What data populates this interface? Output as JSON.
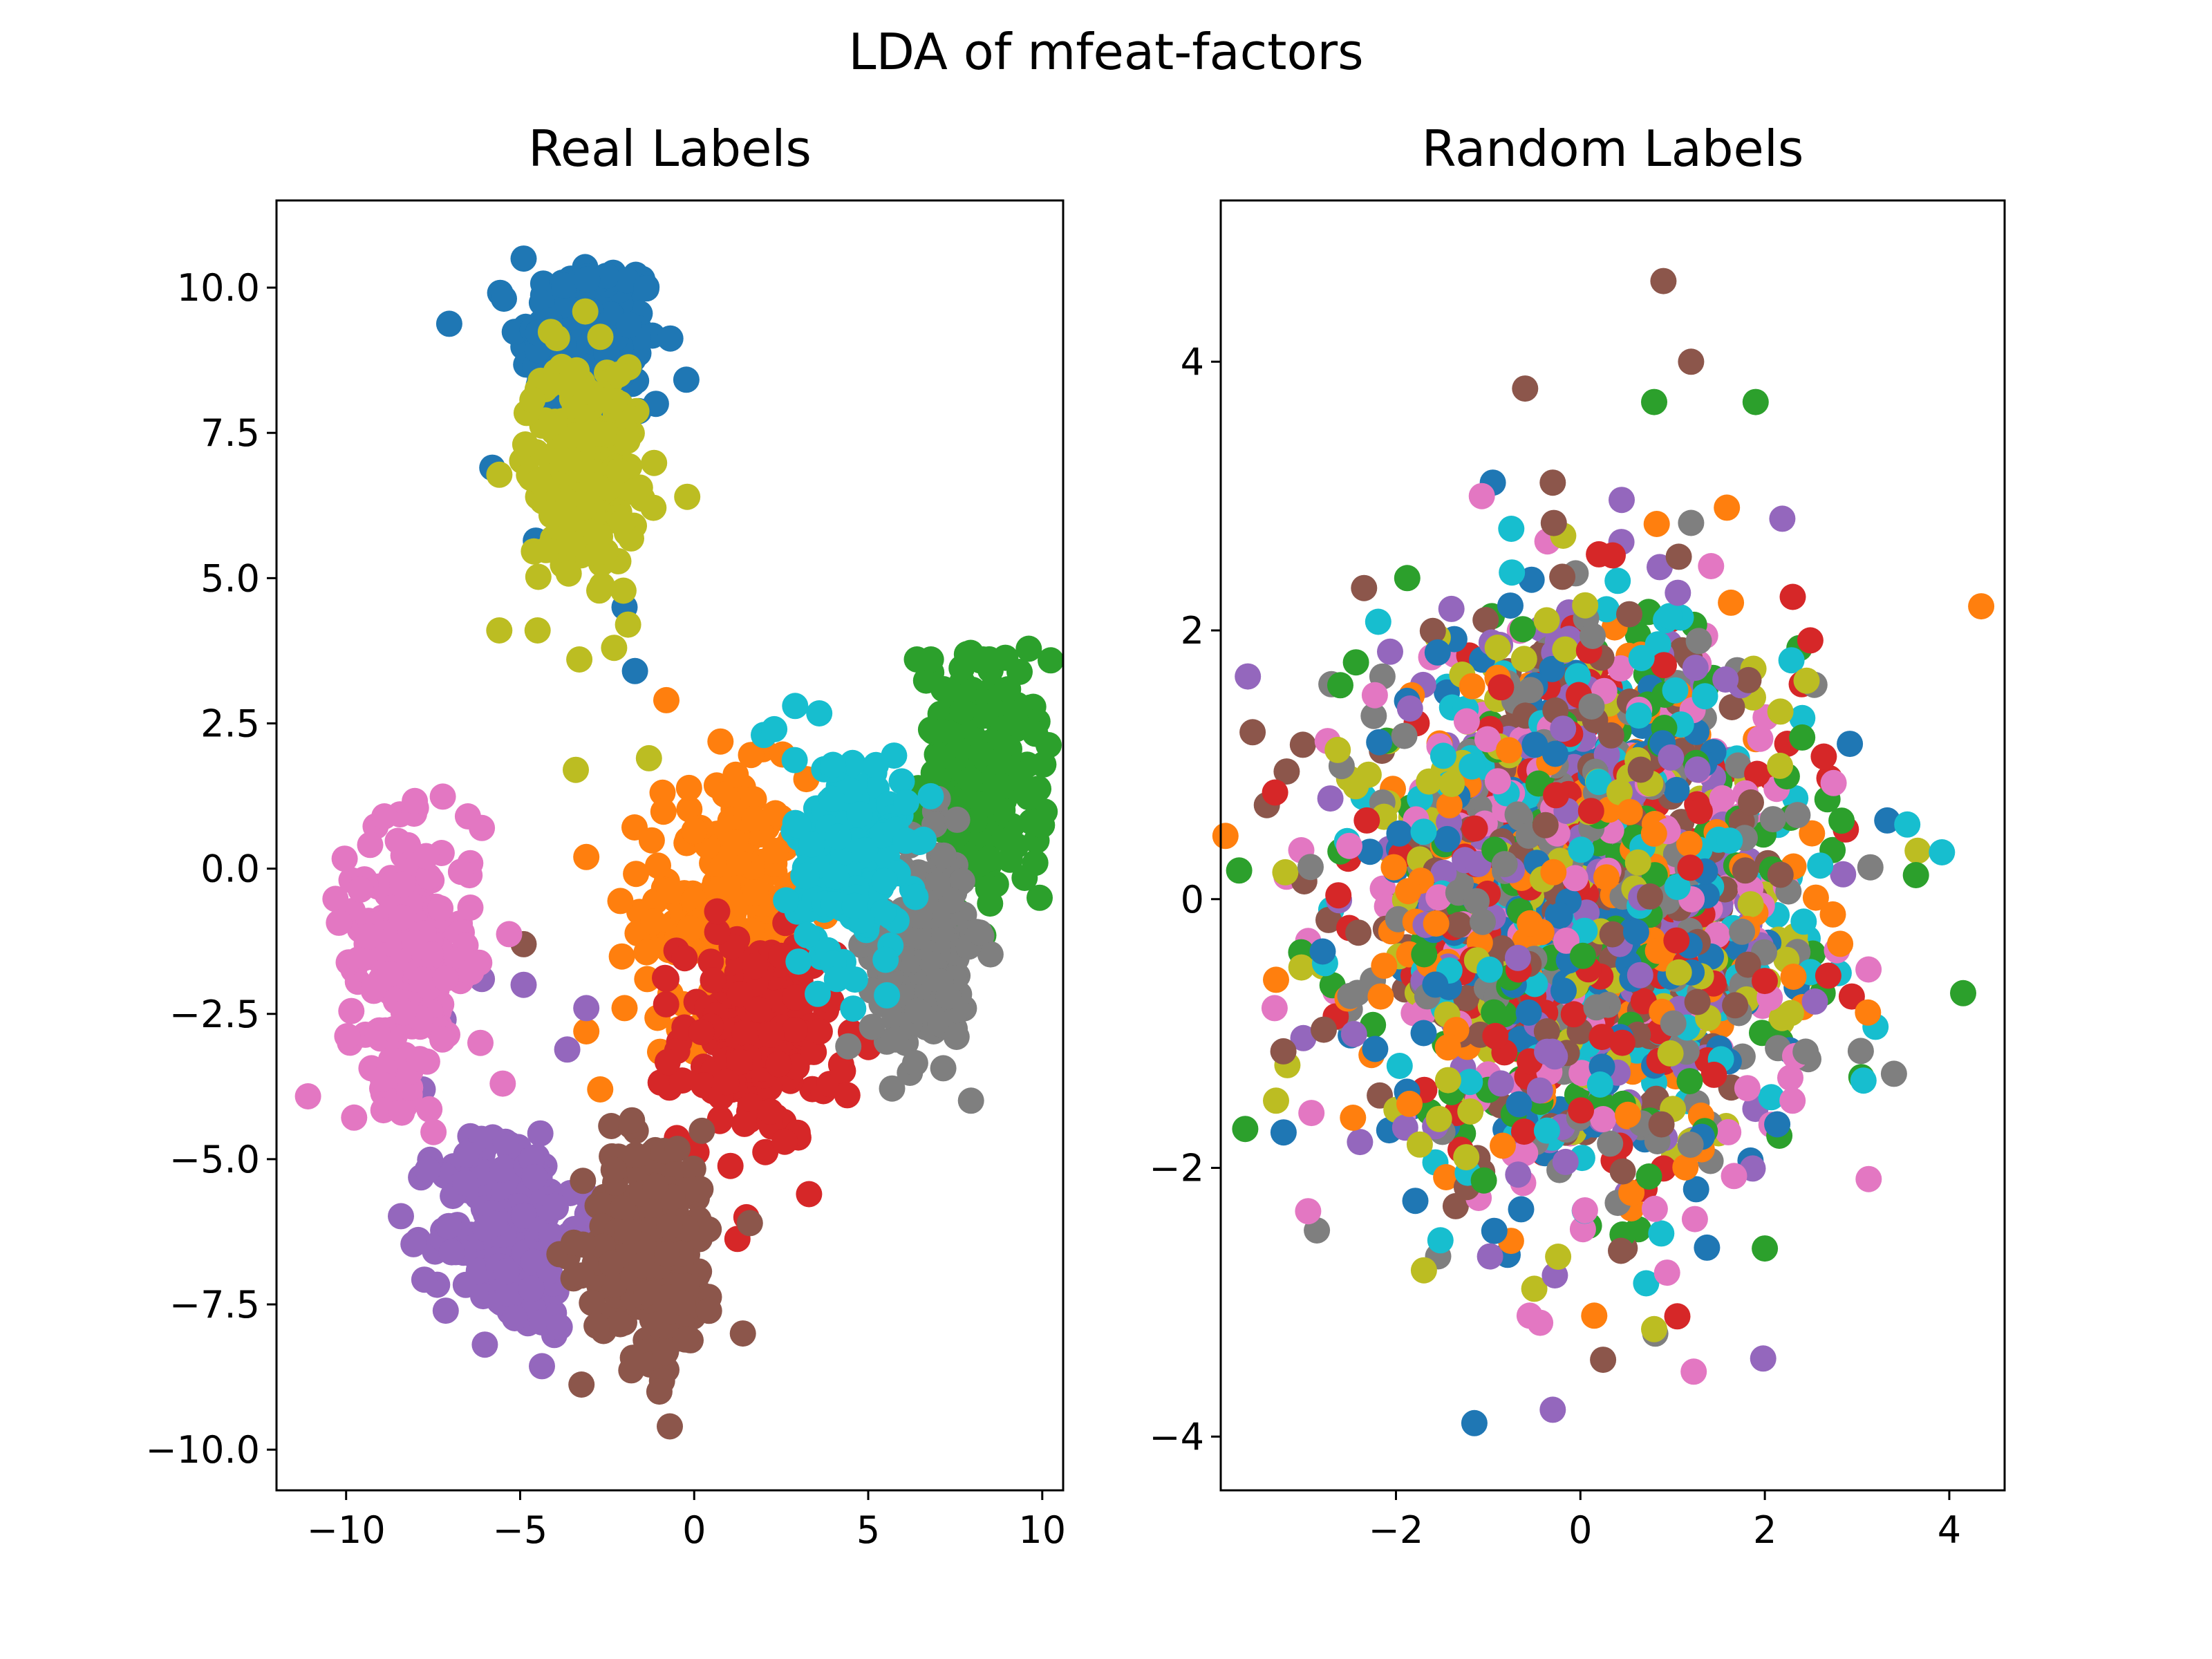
{
  "figure_title": "LDA of mfeat-factors",
  "palette": [
    "#1f77b4",
    "#ff7f0e",
    "#2ca02c",
    "#d62728",
    "#9467bd",
    "#8c564b",
    "#e377c2",
    "#7f7f7f",
    "#bcbd22",
    "#17becf"
  ],
  "chart_data": [
    {
      "type": "scatter",
      "title": "Real Labels",
      "xlabel": "",
      "ylabel": "",
      "xlim": [
        -12,
        10.6
      ],
      "ylim": [
        -10.7,
        11.5
      ],
      "xticks": [
        -10,
        -5,
        0,
        5,
        10
      ],
      "xtick_labels": [
        "−10",
        "−5",
        "0",
        "5",
        "10"
      ],
      "yticks": [
        10.0,
        7.5,
        5.0,
        2.5,
        0.0,
        -2.5,
        -5.0,
        -7.5,
        -10.0
      ],
      "ytick_labels": [
        "10.0",
        "7.5",
        "5.0",
        "2.5",
        "0.0",
        "−2.5",
        "−5.0",
        "−7.5",
        "−10.0"
      ],
      "grid": false,
      "points_per_class": 200,
      "clusters": [
        {
          "class": 0,
          "center": [
            -3.0,
            9.0
          ],
          "spread": [
            1.0,
            0.8
          ],
          "outliers": [
            [
              -4.9,
              10.5
            ],
            [
              -5.8,
              6.9
            ],
            [
              -1.7,
              3.4
            ],
            [
              -2.0,
              4.5
            ],
            [
              -1.1,
              8.0
            ]
          ]
        },
        {
          "class": 1,
          "center": [
            0.9,
            -0.6
          ],
          "spread": [
            1.2,
            1.1
          ],
          "outliers": [
            [
              -0.8,
              2.9
            ],
            [
              -3.1,
              0.2
            ],
            [
              -3.1,
              -2.8
            ],
            [
              -2.7,
              -3.8
            ],
            [
              -2.0,
              -2.4
            ]
          ]
        },
        {
          "class": 2,
          "center": [
            8.3,
            1.6
          ],
          "spread": [
            0.9,
            1.0
          ],
          "outliers": [
            [
              6.4,
              3.6
            ],
            [
              6.8,
              3.6
            ],
            [
              8.3,
              3.6
            ],
            [
              8.5,
              -0.6
            ],
            [
              9.8,
              0.1
            ]
          ]
        },
        {
          "class": 3,
          "center": [
            1.8,
            -2.9
          ],
          "spread": [
            1.1,
            0.9
          ],
          "outliers": [
            [
              4.4,
              -3.9
            ],
            [
              2.6,
              -4.7
            ],
            [
              1.5,
              -6.0
            ],
            [
              -0.8,
              -1.9
            ],
            [
              2.5,
              -1.5
            ]
          ]
        },
        {
          "class": 4,
          "center": [
            -5.3,
            -6.2
          ],
          "spread": [
            1.0,
            0.9
          ],
          "outliers": [
            [
              -4.9,
              -2.0
            ],
            [
              -7.8,
              -3.8
            ],
            [
              -7.2,
              -2.6
            ],
            [
              -6.1,
              -1.9
            ],
            [
              -3.1,
              -2.4
            ]
          ]
        },
        {
          "class": 5,
          "center": [
            -1.2,
            -6.5
          ],
          "spread": [
            1.0,
            1.0
          ],
          "outliers": [
            [
              -0.7,
              -9.6
            ],
            [
              -1.0,
              -9.0
            ],
            [
              1.4,
              -8.0
            ],
            [
              1.6,
              -6.1
            ],
            [
              -4.9,
              -1.3
            ]
          ]
        },
        {
          "class": 6,
          "center": [
            -8.2,
            -1.6
          ],
          "spread": [
            0.9,
            1.1
          ],
          "outliers": [
            [
              -8.9,
              0.9
            ],
            [
              -6.5,
              0.9
            ],
            [
              -6.1,
              0.7
            ],
            [
              -8.4,
              -4.2
            ],
            [
              -5.5,
              -3.7
            ]
          ]
        },
        {
          "class": 7,
          "center": [
            6.5,
            -1.4
          ],
          "spread": [
            0.7,
            0.9
          ],
          "outliers": [
            [
              7.0,
              1.2
            ],
            [
              8.2,
              -1.1
            ],
            [
              5.1,
              -2.1
            ],
            [
              7.3,
              -2.2
            ],
            [
              6.2,
              0.4
            ]
          ]
        },
        {
          "class": 8,
          "center": [
            -3.2,
            7.0
          ],
          "spread": [
            0.8,
            0.9
          ],
          "outliers": [
            [
              -5.6,
              4.1
            ],
            [
              -4.5,
              4.1
            ],
            [
              -3.3,
              3.6
            ],
            [
              -3.4,
              1.7
            ],
            [
              -1.3,
              1.9
            ],
            [
              -2.3,
              3.8
            ],
            [
              -1.9,
              4.2
            ],
            [
              -0.2,
              6.4
            ]
          ]
        },
        {
          "class": 9,
          "center": [
            4.5,
            0.2
          ],
          "spread": [
            0.8,
            0.9
          ],
          "outliers": [
            [
              2.0,
              2.3
            ],
            [
              2.3,
              2.4
            ],
            [
              2.9,
              2.8
            ],
            [
              3.0,
              -1.6
            ],
            [
              4.1,
              -1.9
            ]
          ]
        }
      ]
    },
    {
      "type": "scatter",
      "title": "Random Labels",
      "xlabel": "",
      "ylabel": "",
      "xlim": [
        -3.9,
        4.6
      ],
      "ylim": [
        -4.4,
        5.2
      ],
      "xticks": [
        -2,
        0,
        2,
        4
      ],
      "xtick_labels": [
        "−2",
        "0",
        "2",
        "4"
      ],
      "yticks": [
        4,
        2,
        0,
        -2,
        -4
      ],
      "ytick_labels": [
        "4",
        "2",
        "0",
        "−2",
        "−4"
      ],
      "grid": false,
      "points_per_class": 200,
      "clusters": [
        {
          "class": 0,
          "center": [
            0.0,
            0.0
          ],
          "spread": [
            1.2,
            1.0
          ],
          "outliers": [
            [
              -1.15,
              -3.9
            ],
            [
              -0.95,
              3.1
            ]
          ]
        },
        {
          "class": 1,
          "center": [
            0.0,
            0.0
          ],
          "spread": [
            1.2,
            1.0
          ],
          "outliers": [
            [
              0.15,
              -3.1
            ],
            [
              -3.3,
              -0.6
            ]
          ]
        },
        {
          "class": 2,
          "center": [
            0.0,
            0.0
          ],
          "spread": [
            1.2,
            1.0
          ],
          "outliers": [
            [
              0.8,
              3.7
            ],
            [
              1.9,
              3.7
            ],
            [
              4.15,
              -0.7
            ],
            [
              2.0,
              -2.6
            ]
          ]
        },
        {
          "class": 3,
          "center": [
            0.0,
            0.0
          ],
          "spread": [
            1.2,
            1.0
          ],
          "outliers": [
            [
              2.7,
              0.9
            ],
            [
              2.4,
              1.6
            ]
          ]
        },
        {
          "class": 4,
          "center": [
            0.0,
            0.0
          ],
          "spread": [
            1.2,
            1.0
          ],
          "outliers": [
            [
              -0.3,
              -3.8
            ],
            [
              -1.9,
              -1.7
            ]
          ]
        },
        {
          "class": 5,
          "center": [
            0.0,
            0.0
          ],
          "spread": [
            1.2,
            1.0
          ],
          "outliers": [
            [
              0.9,
              4.6
            ],
            [
              1.2,
              4.0
            ],
            [
              -0.6,
              3.8
            ],
            [
              -0.3,
              3.1
            ],
            [
              -3.4,
              0.7
            ]
          ]
        },
        {
          "class": 6,
          "center": [
            0.0,
            0.0
          ],
          "spread": [
            1.2,
            1.0
          ],
          "outliers": [
            [
              -0.55,
              -3.1
            ],
            [
              2.3,
              -1.5
            ]
          ]
        },
        {
          "class": 7,
          "center": [
            0.0,
            0.0
          ],
          "spread": [
            1.2,
            1.0
          ],
          "outliers": [
            [
              3.4,
              -1.3
            ],
            [
              -2.7,
              1.6
            ],
            [
              1.2,
              2.8
            ]
          ]
        },
        {
          "class": 8,
          "center": [
            0.0,
            0.0
          ],
          "spread": [
            1.2,
            1.0
          ],
          "outliers": [
            [
              0.8,
              -3.2
            ],
            [
              -3.3,
              -1.5
            ],
            [
              -3.2,
              0.2
            ],
            [
              -0.5,
              -2.9
            ]
          ]
        },
        {
          "class": 9,
          "center": [
            0.0,
            0.0
          ],
          "spread": [
            1.2,
            1.0
          ],
          "outliers": [
            [
              2.8,
              -0.55
            ],
            [
              3.2,
              -0.95
            ],
            [
              2.6,
              0.25
            ]
          ]
        }
      ]
    }
  ]
}
